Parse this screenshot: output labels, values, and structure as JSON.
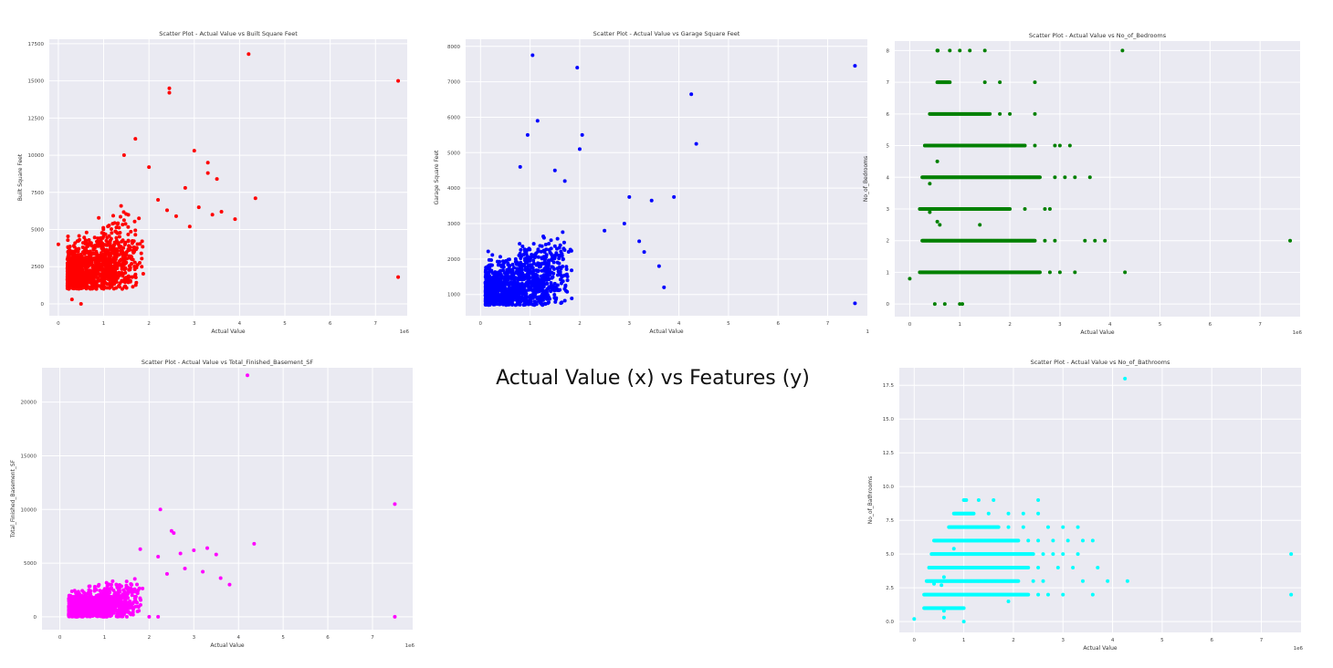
{
  "figure_title": "Actual Value (x) vs Features (y)",
  "chart_data": [
    {
      "type": "scatter",
      "title": "Scatter Plot - Actual Value vs Built Square Feet",
      "xlabel": "Actual Value",
      "ylabel": "Built Square Feet",
      "color": "#ff0000",
      "x_ticks": [
        "0",
        "1",
        "2",
        "3",
        "4",
        "5",
        "6",
        "7"
      ],
      "y_ticks": [
        "0",
        "2500",
        "5000",
        "7500",
        "10000",
        "12500",
        "15000",
        "17500"
      ],
      "x_offset_label": "1e6",
      "xlim": [
        -0.2,
        7.7
      ],
      "ylim": [
        -800,
        17800
      ],
      "grid": true,
      "cluster": {
        "x_range": [
          0.2,
          1.9
        ],
        "y_range": [
          1000,
          7000
        ]
      },
      "points": [
        [
          4.2,
          16800
        ],
        [
          2.45,
          14500
        ],
        [
          2.45,
          14200
        ],
        [
          7.5,
          15000
        ],
        [
          7.5,
          1800
        ],
        [
          4.35,
          7100
        ],
        [
          3.9,
          5700
        ],
        [
          3.6,
          6200
        ],
        [
          3.4,
          6000
        ],
        [
          3.3,
          9500
        ],
        [
          3.0,
          10300
        ],
        [
          1.7,
          11100
        ],
        [
          1.45,
          10000
        ],
        [
          2.0,
          9200
        ],
        [
          3.3,
          8800
        ],
        [
          2.8,
          7800
        ],
        [
          2.2,
          7000
        ],
        [
          2.6,
          5900
        ],
        [
          0.0,
          4000
        ],
        [
          0.3,
          300
        ],
        [
          0.5,
          0
        ],
        [
          3.1,
          6500
        ],
        [
          2.9,
          5200
        ],
        [
          3.5,
          8400
        ],
        [
          2.4,
          6300
        ]
      ]
    },
    {
      "type": "scatter",
      "title": "Scatter Plot - Actual Value vs Garage Square Feet",
      "xlabel": "Actual Value",
      "ylabel": "Garage Square Feet",
      "color": "#0000ff",
      "x_ticks": [
        "0",
        "1",
        "2",
        "3",
        "4",
        "5",
        "6",
        "7"
      ],
      "y_ticks": [
        "1000",
        "2000",
        "3000",
        "4000",
        "5000",
        "6000",
        "7000",
        "8000"
      ],
      "x_offset_label": "1",
      "xlim": [
        -0.3,
        7.8
      ],
      "ylim": [
        400,
        8200
      ],
      "grid": true,
      "cluster": {
        "x_range": [
          0.1,
          1.9
        ],
        "y_range": [
          700,
          3000
        ]
      },
      "points": [
        [
          1.05,
          7750
        ],
        [
          1.95,
          7400
        ],
        [
          7.55,
          7450
        ],
        [
          4.25,
          6650
        ],
        [
          4.35,
          5250
        ],
        [
          7.55,
          750
        ],
        [
          1.15,
          5900
        ],
        [
          2.05,
          5500
        ],
        [
          3.9,
          3750
        ],
        [
          3.45,
          3650
        ],
        [
          3.0,
          3750
        ],
        [
          1.5,
          4500
        ],
        [
          2.0,
          5100
        ],
        [
          0.95,
          5500
        ],
        [
          0.8,
          4600
        ],
        [
          2.9,
          3000
        ],
        [
          3.2,
          2500
        ],
        [
          3.6,
          1800
        ],
        [
          3.7,
          1200
        ],
        [
          3.3,
          2200
        ],
        [
          2.5,
          2800
        ],
        [
          1.7,
          4200
        ]
      ]
    },
    {
      "type": "scatter",
      "title": "Scatter Plot - Actual Value vs No_of_Bedrooms",
      "xlabel": "Actual Value",
      "ylabel": "No_of_Bedrooms",
      "color": "#008000",
      "x_ticks": [
        "0",
        "1",
        "2",
        "3",
        "4",
        "5",
        "6",
        "7"
      ],
      "y_ticks": [
        "0",
        "1",
        "2",
        "3",
        "4",
        "5",
        "6",
        "7",
        "8"
      ],
      "x_offset_label": "1e6",
      "xlim": [
        -0.3,
        7.8
      ],
      "ylim": [
        -0.4,
        8.3
      ],
      "grid": true,
      "rows": [
        {
          "y": 1,
          "x_range": [
            0.2,
            2.6
          ],
          "extra": [
            2.8,
            3.0,
            3.3,
            4.3
          ]
        },
        {
          "y": 2,
          "x_range": [
            0.25,
            2.5
          ],
          "extra": [
            2.7,
            2.9,
            3.5,
            3.7,
            3.9,
            7.6
          ]
        },
        {
          "y": 3,
          "x_range": [
            0.2,
            2.0
          ],
          "extra": [
            2.3,
            2.7,
            2.8
          ]
        },
        {
          "y": 4,
          "x_range": [
            0.25,
            2.6
          ],
          "extra": [
            2.9,
            3.1,
            3.3,
            3.6
          ]
        },
        {
          "y": 5,
          "x_range": [
            0.3,
            2.3
          ],
          "extra": [
            2.5,
            2.9,
            3.0,
            3.2
          ]
        },
        {
          "y": 6,
          "x_range": [
            0.4,
            1.6
          ],
          "extra": [
            1.8,
            2.0,
            2.5
          ]
        },
        {
          "y": 7,
          "x_range": [
            0.55,
            0.8
          ],
          "extra": [
            1.5,
            1.8,
            2.5
          ]
        },
        {
          "y": 8,
          "x_range": [
            0.55,
            0.56
          ],
          "extra": [
            0.8,
            1.0,
            1.2,
            1.5,
            4.25
          ]
        }
      ],
      "points": [
        [
          0.0,
          0.8
        ],
        [
          0.5,
          0
        ],
        [
          0.7,
          0
        ],
        [
          1.0,
          0
        ],
        [
          1.05,
          0
        ],
        [
          0.6,
          2.5
        ],
        [
          0.55,
          2.6
        ],
        [
          1.4,
          2.5
        ],
        [
          0.4,
          2.9
        ],
        [
          0.55,
          4.5
        ],
        [
          0.4,
          3.8
        ]
      ]
    },
    {
      "type": "scatter",
      "title": "Scatter Plot - Actual Value vs Total_Finished_Basement_SF",
      "xlabel": "Actual Value",
      "ylabel": "Total_Finished_Basement_SF",
      "color": "#ff00ff",
      "x_ticks": [
        "0",
        "1",
        "2",
        "3",
        "4",
        "5",
        "6",
        "7"
      ],
      "y_ticks": [
        "0",
        "5000",
        "10000",
        "15000",
        "20000"
      ],
      "x_offset_label": "1e6",
      "xlim": [
        -0.4,
        7.9
      ],
      "ylim": [
        -1200,
        23200
      ],
      "grid": true,
      "cluster": {
        "x_range": [
          0.2,
          1.9
        ],
        "y_range": [
          0,
          4000
        ]
      },
      "points": [
        [
          4.2,
          22500
        ],
        [
          7.5,
          10500
        ],
        [
          7.5,
          0
        ],
        [
          2.25,
          10000
        ],
        [
          2.5,
          8000
        ],
        [
          2.55,
          7800
        ],
        [
          4.35,
          6800
        ],
        [
          3.3,
          6400
        ],
        [
          3.0,
          6200
        ],
        [
          3.5,
          5800
        ],
        [
          1.8,
          6300
        ],
        [
          2.7,
          5900
        ],
        [
          3.6,
          3600
        ],
        [
          3.8,
          3000
        ],
        [
          3.2,
          4200
        ],
        [
          2.2,
          5600
        ],
        [
          2.8,
          4500
        ],
        [
          2.4,
          4000
        ],
        [
          2.0,
          0
        ],
        [
          1.5,
          0
        ],
        [
          2.2,
          0
        ],
        [
          1.0,
          0
        ]
      ]
    },
    {
      "type": "scatter",
      "title": "Scatter Plot - Actual Value vs No_of_Bathrooms",
      "xlabel": "Actual Value",
      "ylabel": "No_of_Bathrooms",
      "color": "#00ffff",
      "x_ticks": [
        "0",
        "1",
        "2",
        "3",
        "4",
        "5",
        "6",
        "7"
      ],
      "y_ticks": [
        "0.0",
        "2.5",
        "5.0",
        "7.5",
        "10.0",
        "12.5",
        "15.0",
        "17.5"
      ],
      "x_offset_label": "1e6",
      "xlim": [
        -0.3,
        7.8
      ],
      "ylim": [
        -0.8,
        18.8
      ],
      "grid": true,
      "rows": [
        {
          "y": 1,
          "x_range": [
            0.2,
            1.0
          ],
          "extra": []
        },
        {
          "y": 2,
          "x_range": [
            0.2,
            2.3
          ],
          "extra": [
            2.5,
            2.7,
            3.0,
            3.6
          ]
        },
        {
          "y": 3,
          "x_range": [
            0.25,
            2.1
          ],
          "extra": [
            2.4,
            2.6,
            3.4,
            3.9,
            4.3
          ]
        },
        {
          "y": 4,
          "x_range": [
            0.3,
            2.3
          ],
          "extra": [
            2.5,
            2.9,
            3.2,
            3.7
          ]
        },
        {
          "y": 5,
          "x_range": [
            0.35,
            2.4
          ],
          "extra": [
            2.6,
            2.8,
            3.0,
            3.3
          ]
        },
        {
          "y": 6,
          "x_range": [
            0.4,
            2.1
          ],
          "extra": [
            2.3,
            2.5,
            2.8,
            3.1,
            3.4,
            3.6
          ]
        },
        {
          "y": 7,
          "x_range": [
            0.7,
            1.7
          ],
          "extra": [
            1.9,
            2.2,
            2.7,
            3.0,
            3.3
          ]
        },
        {
          "y": 8,
          "x_range": [
            0.8,
            1.2
          ],
          "extra": [
            1.5,
            1.9,
            2.2,
            2.5
          ]
        },
        {
          "y": 9,
          "x_range": [
            1.0,
            1.05
          ],
          "extra": [
            1.3,
            1.6,
            2.5
          ]
        }
      ],
      "points": [
        [
          4.25,
          18
        ],
        [
          7.6,
          5
        ],
        [
          7.6,
          2
        ],
        [
          0.0,
          0.2
        ],
        [
          0.6,
          0.3
        ],
        [
          1.0,
          0
        ],
        [
          0.6,
          0.8
        ],
        [
          1.9,
          1.5
        ],
        [
          0.4,
          2.8
        ],
        [
          0.6,
          3.3
        ],
        [
          0.55,
          2.7
        ],
        [
          0.8,
          5.4
        ]
      ]
    }
  ]
}
